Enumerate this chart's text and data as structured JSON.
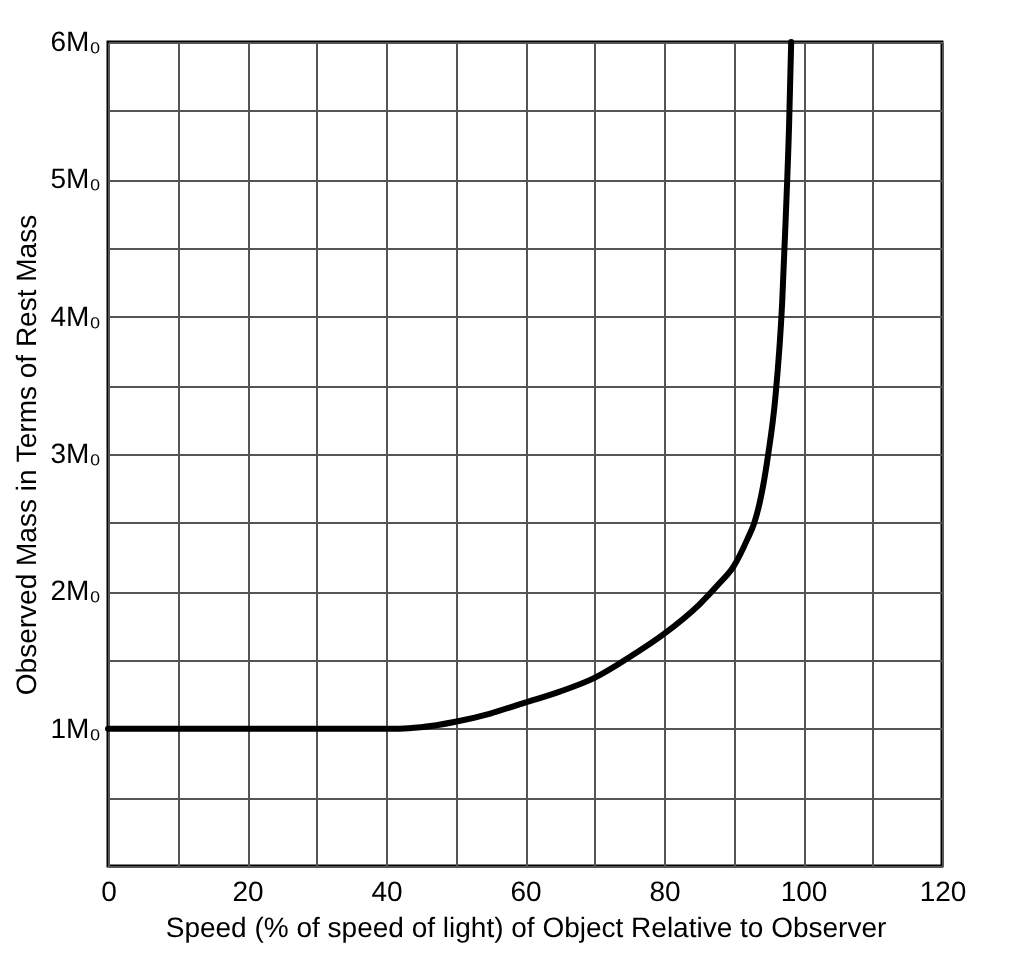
{
  "chart_data": {
    "type": "line",
    "xlabel": "Speed (% of speed of light) of Object Relative to Observer",
    "ylabel": "Observed Mass in Terms of Rest Mass",
    "x": [
      0,
      10,
      20,
      30,
      40,
      42,
      45,
      50,
      55,
      60,
      65,
      70,
      75,
      80,
      85,
      88,
      90,
      92,
      93,
      94,
      95,
      96,
      97,
      97.5,
      98,
      98.3
    ],
    "series": [
      {
        "color": "#000000",
        "values": [
          1,
          1,
          1,
          1,
          1,
          1,
          1.01,
          1.05,
          1.11,
          1.19,
          1.27,
          1.37,
          1.52,
          1.69,
          1.9,
          2.06,
          2.18,
          2.38,
          2.5,
          2.7,
          3.0,
          3.4,
          4.1,
          4.7,
          5.4,
          6
        ]
      }
    ],
    "xlim": [
      0,
      120
    ],
    "ylim": [
      0,
      6
    ],
    "xticks": [
      0,
      {
        "value": 10,
        "label": null
      },
      20,
      {
        "value": 30,
        "label": null
      },
      40,
      {
        "value": 50,
        "label": null
      },
      60,
      {
        "value": 70,
        "label": null
      },
      80,
      {
        "value": 90,
        "label": null
      },
      100,
      {
        "value": 110,
        "label": null
      },
      120
    ],
    "yticks": [
      {
        "value": 0,
        "label": null
      },
      {
        "value": 0.5,
        "label": null
      },
      {
        "value": 1,
        "label": "1M₀"
      },
      {
        "value": 1.5,
        "label": null
      },
      {
        "value": 2,
        "label": "2M₀"
      },
      {
        "value": 2.5,
        "label": null
      },
      {
        "value": 3,
        "label": "3M₀"
      },
      {
        "value": 3.5,
        "label": null
      },
      {
        "value": 4,
        "label": "4M₀"
      },
      {
        "value": 4.5,
        "label": null
      },
      {
        "value": 5,
        "label": "5M₀"
      },
      {
        "value": 5.5,
        "label": null
      },
      {
        "value": 6,
        "label": "6M₀"
      }
    ],
    "grid": true,
    "marker": "none",
    "line_style": "solid"
  }
}
